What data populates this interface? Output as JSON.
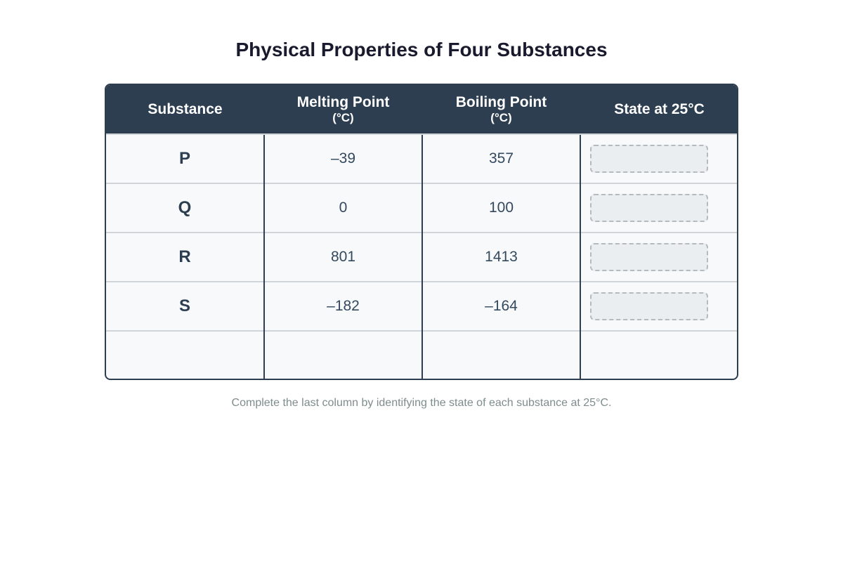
{
  "title": "Physical Properties of Four Substances",
  "table": {
    "headers": [
      {
        "label": "Substance",
        "unit": ""
      },
      {
        "label": "Melting Point",
        "unit": "(°C)"
      },
      {
        "label": "Boiling Point",
        "unit": "(°C)"
      },
      {
        "label": "State at 25°C",
        "unit": ""
      }
    ],
    "rows": [
      {
        "substance": "P",
        "melting_point": "–39",
        "boiling_point": "357",
        "state": ""
      },
      {
        "substance": "Q",
        "melting_point": "0",
        "boiling_point": "100",
        "state": ""
      },
      {
        "substance": "R",
        "melting_point": "801",
        "boiling_point": "1413",
        "state": ""
      },
      {
        "substance": "S",
        "melting_point": "–182",
        "boiling_point": "–164",
        "state": ""
      }
    ]
  },
  "footnote": "Complete the last column by identifying the state of each substance at 25°C.",
  "colors": {
    "header_bg": "#2c3e50",
    "table_bg": "#f7f9fb",
    "answer_box_bg": "#ebeef0"
  }
}
